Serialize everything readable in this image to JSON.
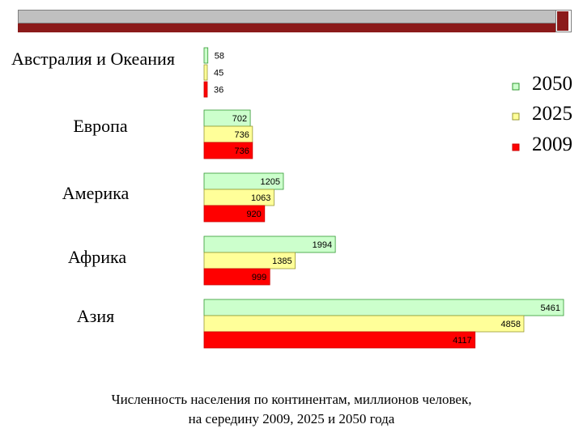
{
  "colors": {
    "topbar_grey": "#c0c0c0",
    "topbar_red": "#8b1a1a"
  },
  "chart_data": {
    "type": "bar",
    "orientation": "horizontal",
    "categories": [
      "Австралия и Океания",
      "Европа",
      "Америка",
      "Африка",
      "Азия"
    ],
    "series": [
      {
        "name": "2050",
        "color": "#ccffcc",
        "values": [
          58,
          702,
          1205,
          1994,
          5461
        ]
      },
      {
        "name": "2025",
        "color": "#ffff99",
        "values": [
          45,
          736,
          1063,
          1385,
          4858
        ]
      },
      {
        "name": "2009",
        "color": "#ff0000",
        "values": [
          36,
          736,
          920,
          999,
          4117
        ]
      }
    ],
    "xlim": [
      0,
      5600
    ],
    "legend_position": "right",
    "data_labels": "inside-end",
    "grid": false
  },
  "caption": {
    "line1": "Численность населения по континентам, миллионов человек,",
    "line2": "на середину 2009, 2025 и 2050 года"
  }
}
